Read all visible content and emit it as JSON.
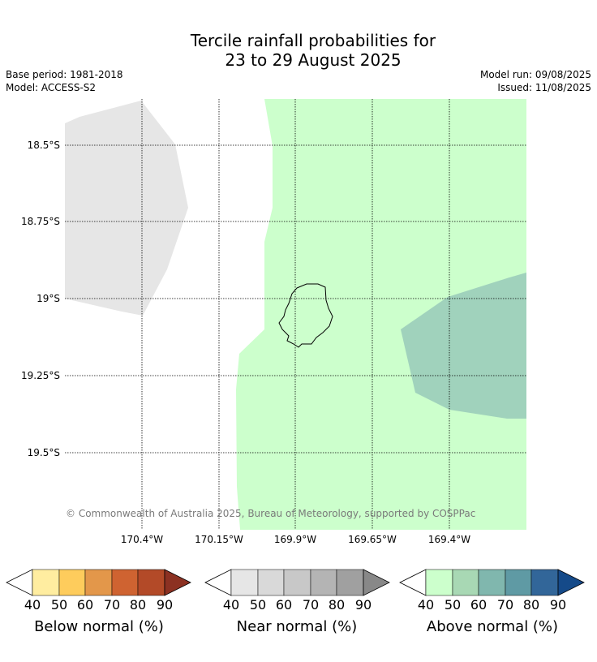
{
  "title_line1": "Tercile rainfall probabilities for",
  "title_line2": "23 to 29 August 2025",
  "base_period": "Base period: 1981-2018",
  "model": "Model: ACCESS-S2",
  "model_run": "Model run: 09/08/2025",
  "issued": "Issued: 11/08/2025",
  "copyright": "© Commonwealth of Australia 2025, Bureau of Meteorology, supported by COSPPac",
  "lat_labels": [
    "18.5°S",
    "18.75°S",
    "19°S",
    "19.25°S",
    "19.5°S"
  ],
  "lon_labels": [
    "170.4°W",
    "170.15°W",
    "169.9°W",
    "169.65°W",
    "169.4°W"
  ],
  "colorbars": [
    {
      "title": "Below normal (%)",
      "ticks": [
        "40",
        "50",
        "60",
        "70",
        "80",
        "90"
      ],
      "colors": [
        "#ffeda0",
        "#fecc5c",
        "#e3974a",
        "#cf6331",
        "#b34a28",
        "#8c3122"
      ]
    },
    {
      "title": "Near normal (%)",
      "ticks": [
        "40",
        "50",
        "60",
        "70",
        "80",
        "90"
      ],
      "colors": [
        "#e6e6e6",
        "#d9d9d9",
        "#c8c8c8",
        "#b4b4b4",
        "#a0a0a0",
        "#888888"
      ]
    },
    {
      "title": "Above normal (%)",
      "ticks": [
        "40",
        "50",
        "60",
        "70",
        "80",
        "90"
      ],
      "colors": [
        "#ccffcc",
        "#a8d8b4",
        "#80b7ae",
        "#5f9aa4",
        "#326699",
        "#154a89"
      ]
    }
  ],
  "regions": [
    {
      "category": "Near normal",
      "range": "40–50%",
      "color": "#e6e6e6"
    },
    {
      "category": "Above normal",
      "range": "40–50%",
      "color": "#ccffcc"
    },
    {
      "category": "Above normal",
      "range": "50–60%",
      "color": "#a0d2bc"
    }
  ]
}
